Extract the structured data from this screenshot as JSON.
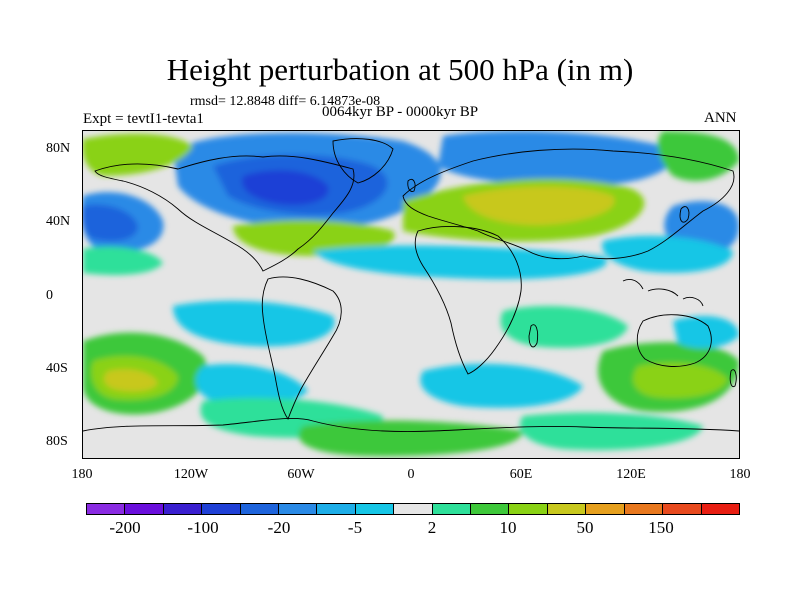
{
  "header": {
    "title": "Height perturbation at 500 hPa (in m)",
    "stats": "rmsd= 12.8848 diff= 6.14873e-08",
    "experiment": "Expt = tevtI1-tevta1",
    "period": "0064kyr BP - 0000kyr BP",
    "season": "ANN"
  },
  "axes": {
    "lat_ticks": [
      "80N",
      "40N",
      "0",
      "40S",
      "80S"
    ],
    "lon_ticks": [
      "180",
      "120W",
      "60W",
      "0",
      "60E",
      "120E",
      "180"
    ]
  },
  "colorbar": {
    "colors": [
      "#8a2be2",
      "#6a0fdc",
      "#3a1fd0",
      "#1f40d6",
      "#1e64dc",
      "#2a8ae6",
      "#1eaee8",
      "#16c6e6",
      "#e6e6e6",
      "#2ee09a",
      "#3ec83a",
      "#8ad214",
      "#c8c81e",
      "#e6a01e",
      "#e8781e",
      "#e84a1e",
      "#e81e12"
    ],
    "labels": [
      "-200",
      "-100",
      "-20",
      "-5",
      "2",
      "10",
      "50",
      "150"
    ]
  },
  "field_colors": {
    "neutral": "#e5e5e5",
    "neg_light": "#16c6e6",
    "neg_mid": "#2a8ae6",
    "neg_strong": "#1e64dc",
    "neg_deep": "#1f40d6",
    "pos_light": "#2ee09a",
    "pos_mid": "#3ec83a",
    "pos_strong": "#8ad214",
    "pos_deep": "#c8c81e"
  }
}
